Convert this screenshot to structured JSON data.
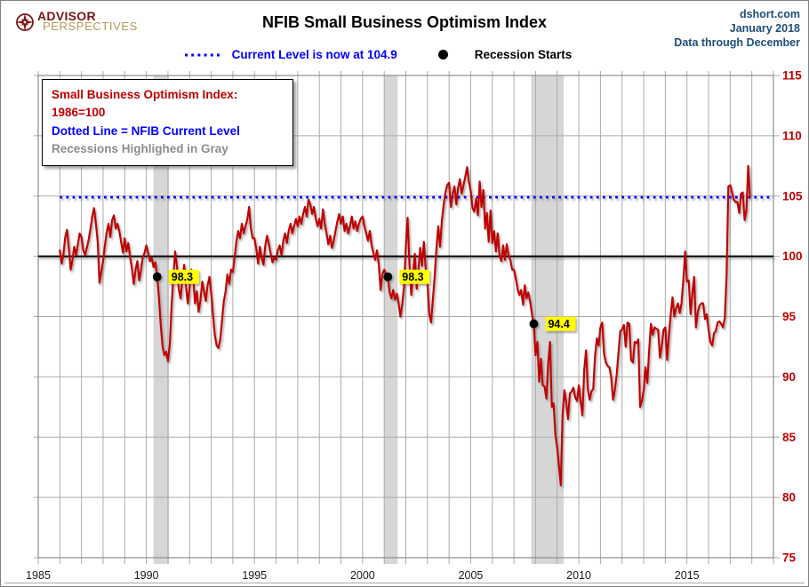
{
  "header": {
    "logo_line1": "ADVISOR",
    "logo_line2": "PERSPECTIVES",
    "title": "NFIB Small Business Optimism Index",
    "source": "dshort.com",
    "date": "January 2018",
    "coverage": "Data through December"
  },
  "legend_row": {
    "current_level": "Current Level is now at 104.9",
    "recession_starts": "Recession Starts"
  },
  "legend_box": {
    "line1": "Small Business Optimism Index: 1986=100",
    "line2": "Dotted Line = NFIB Current Level",
    "line3": "Recessions Highlighed in Gray"
  },
  "chart_data": {
    "type": "line",
    "title": "NFIB Small Business Optimism Index",
    "x_range": [
      1985,
      2019
    ],
    "y_range": [
      75,
      115
    ],
    "y_ticks": [
      75,
      80,
      85,
      90,
      95,
      100,
      105,
      110,
      115
    ],
    "x_tick_labels": [
      1985,
      1990,
      1995,
      2000,
      2005,
      2010,
      2015
    ],
    "grid": true,
    "baseline_value": 100,
    "current_level": 104.9,
    "recessions": [
      {
        "start": 1990.33,
        "end": 1991.05
      },
      {
        "start": 2001.0,
        "end": 2001.62
      },
      {
        "start": 2007.8,
        "end": 2009.3
      }
    ],
    "recession_start_markers": [
      {
        "year": 1990.5,
        "value": 98.3,
        "label": "98.3"
      },
      {
        "year": 2001.17,
        "value": 98.3,
        "label": "98.3"
      },
      {
        "year": 2007.92,
        "value": 94.4,
        "label": "94.4"
      }
    ],
    "series": [
      {
        "name": "Small Business Optimism Index (1986=100)",
        "start_year": 1986,
        "frequency": "monthly",
        "color": "#C00000",
        "values": [
          100.5,
          99.4,
          100.2,
          101.6,
          102.2,
          100.6,
          98.9,
          99.7,
          100.8,
          100.1,
          101.0,
          101.9,
          101.6,
          100.5,
          100.1,
          100.7,
          101.4,
          102.3,
          103.3,
          104.0,
          102.7,
          101.2,
          97.8,
          98.7,
          99.6,
          100.9,
          102.0,
          102.7,
          101.6,
          103.0,
          103.4,
          102.3,
          102.7,
          102.1,
          101.2,
          100.3,
          101.5,
          100.4,
          101.1,
          99.9,
          99.0,
          97.7,
          98.9,
          99.6,
          98.0,
          98.8,
          99.9,
          100.3,
          100.9,
          100.3,
          99.6,
          99.9,
          99.1,
          99.5,
          98.3,
          96.6,
          94.3,
          92.5,
          91.8,
          92.1,
          91.3,
          92.7,
          95.9,
          98.3,
          100.4,
          99.1,
          97.3,
          96.5,
          98.1,
          99.3,
          97.5,
          96.1,
          97.4,
          98.9,
          98.3,
          96.1,
          97.1,
          95.4,
          96.3,
          97.9,
          97.1,
          96.3,
          97.6,
          98.3,
          96.9,
          95.1,
          93.5,
          92.6,
          92.4,
          93.1,
          94.7,
          96.3,
          97.1,
          98.5,
          97.7,
          98.9,
          98.7,
          99.9,
          101.3,
          102.1,
          101.5,
          102.7,
          101.9,
          102.5,
          103.0,
          104.1,
          102.3,
          101.5,
          101.5,
          100.6,
          99.4,
          100.8,
          99.9,
          99.3,
          100.9,
          101.7,
          101.0,
          100.2,
          99.5,
          99.9,
          99.7,
          100.5,
          100.9,
          100.1,
          101.3,
          101.9,
          101.1,
          102.1,
          102.7,
          101.9,
          102.5,
          103.1,
          102.5,
          103.3,
          102.7,
          103.5,
          104.1,
          103.3,
          104.7,
          104.3,
          103.5,
          104.1,
          103.1,
          102.5,
          103.1,
          102.3,
          103.9,
          102.7,
          101.9,
          101.0,
          101.7,
          100.7,
          101.3,
          102.1,
          102.9,
          103.5,
          102.7,
          103.3,
          102.1,
          102.7,
          101.9,
          102.5,
          103.3,
          102.3,
          102.9,
          102.1,
          102.7,
          103.1,
          103.3,
          102.5,
          101.9,
          101.3,
          102.1,
          100.9,
          100.3,
          99.7,
          100.5,
          99.3,
          97.2,
          98.5,
          98.9,
          98.5,
          98.3,
          97.0,
          96.5,
          97.2,
          96.4,
          96.9,
          96.1,
          95.0,
          96.0,
          97.5,
          100.8,
          103.2,
          99.3,
          96.8,
          98.5,
          100.2,
          97.3,
          98.9,
          100.7,
          99.2,
          101.2,
          99.0,
          97.8,
          95.2,
          94.5,
          96.4,
          98.3,
          100.7,
          102.5,
          100.8,
          102.9,
          104.3,
          105.3,
          105.9,
          106.1,
          104.1,
          105.2,
          105.8,
          104.3,
          105.7,
          106.4,
          105.2,
          105.9,
          106.6,
          107.4,
          106.2,
          105.4,
          104.0,
          103.7,
          104.8,
          103.4,
          106.2,
          104.1,
          105.5,
          102.3,
          103.6,
          101.2,
          103.8,
          101.1,
          102.1,
          100.4,
          101.9,
          100.1,
          99.6,
          100.9,
          99.7,
          101.0,
          100.1,
          99.7,
          98.9,
          98.9,
          98.2,
          97.3,
          96.8,
          97.2,
          96.0,
          97.6,
          96.5,
          97.0,
          96.2,
          95.2,
          94.4,
          91.8,
          92.9,
          89.6,
          91.5,
          89.3,
          89.2,
          88.2,
          91.1,
          92.9,
          87.5,
          87.8,
          85.2,
          84.1,
          82.6,
          81.0,
          86.8,
          88.9,
          87.9,
          86.5,
          88.6,
          88.8,
          89.1,
          88.3,
          88.0,
          89.3,
          88.0,
          86.8,
          90.6,
          92.2,
          89.0,
          88.1,
          88.8,
          89.0,
          91.7,
          93.2,
          92.6,
          94.1,
          94.5,
          91.9,
          91.2,
          90.9,
          90.8,
          89.9,
          88.1,
          88.9,
          90.2,
          92.0,
          93.8,
          93.9,
          94.3,
          92.5,
          94.5,
          94.4,
          91.4,
          91.2,
          92.9,
          92.8,
          93.1,
          87.5,
          88.0,
          88.9,
          90.8,
          89.5,
          92.1,
          94.4,
          93.5,
          94.1,
          94.0,
          93.9,
          91.6,
          92.5,
          93.9,
          94.1,
          91.4,
          93.4,
          95.2,
          96.6,
          95.0,
          95.7,
          96.1,
          95.3,
          96.1,
          98.1,
          100.4,
          97.9,
          98.0,
          95.2,
          96.9,
          98.3,
          94.1,
          95.4,
          95.9,
          96.1,
          96.1,
          94.8,
          95.2,
          93.9,
          92.9,
          92.6,
          93.6,
          93.8,
          94.5,
          94.6,
          94.4,
          94.1,
          94.9,
          98.4,
          105.8,
          105.9,
          105.3,
          104.7,
          104.5,
          104.5,
          103.6,
          105.2,
          105.3,
          103.0,
          103.8,
          107.5,
          104.9
        ]
      }
    ],
    "colors": {
      "series": "#C00000",
      "current_level_line": "#0000FF",
      "baseline": "#000000",
      "recession_band": "#D6D6D6",
      "grid": "#ABABAB",
      "frame": "#8C8C8C",
      "y_tick_label": "#C00000",
      "x_tick_label": "#1A1A1A",
      "marker": "#000000",
      "marker_label_bg": "#FFFF00"
    },
    "legend_position": "top-left"
  }
}
